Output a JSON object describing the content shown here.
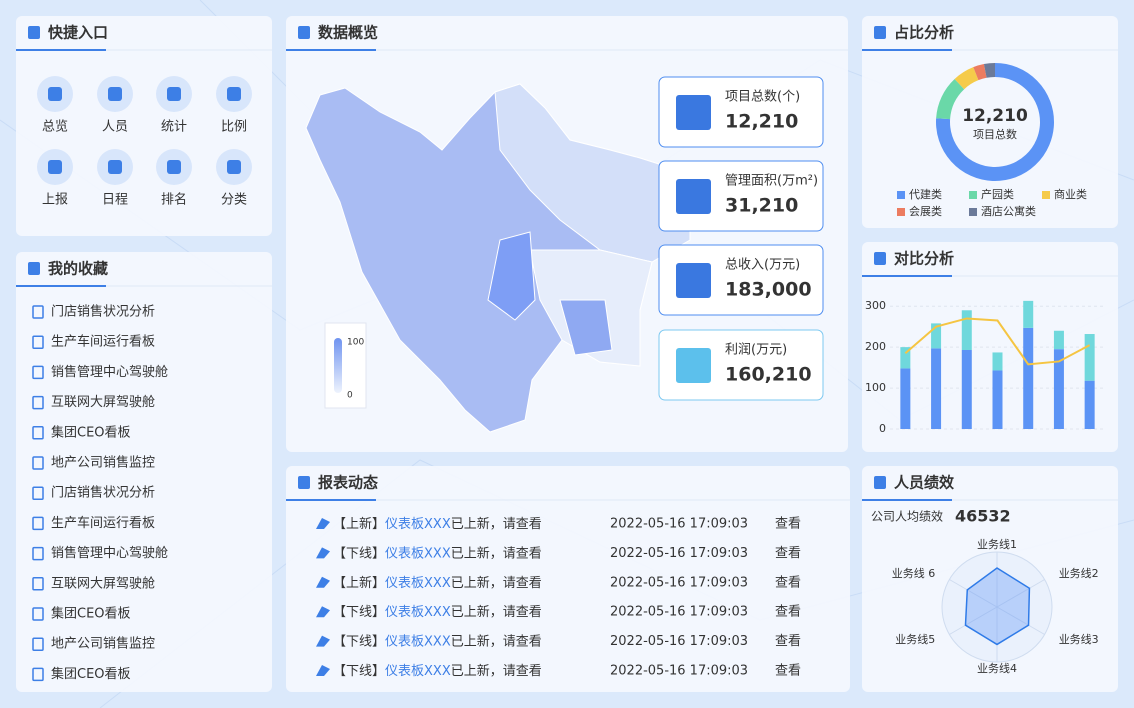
{
  "quick": {
    "title": "快捷入口",
    "items": [
      "总览",
      "人员",
      "统计",
      "比例",
      "上报",
      "日程",
      "排名",
      "分类"
    ]
  },
  "favorites": {
    "title": "我的收藏",
    "items": [
      "门店销售状况分析",
      "生产车间运行看板",
      "销售管理中心驾驶舱",
      "互联网大屏驾驶舱",
      "集团CEO看板",
      "地产公司销售监控",
      "门店销售状况分析",
      "生产车间运行看板",
      "销售管理中心驾驶舱",
      "互联网大屏驾驶舱",
      "集团CEO看板",
      "地产公司销售监控",
      "集团CEO看板"
    ]
  },
  "overview": {
    "title": "数据概览",
    "visual_map": {
      "max": 100,
      "min": 0
    },
    "kpis": [
      {
        "label": "项目总数(个)",
        "value": "12,210"
      },
      {
        "label": "管理面积(万m²)",
        "value": "31,210"
      },
      {
        "label": "总收入(万元)",
        "value": "183,000"
      },
      {
        "label": "利润(万元)",
        "value": "160,210"
      }
    ]
  },
  "reports": {
    "title": "报表动态",
    "rows": [
      {
        "tag": "【上新】",
        "name": "仪表板XXX",
        "text": "已上新，请查看",
        "time": "2022-05-16 17:09:03",
        "action": "查看"
      },
      {
        "tag": "【下线】",
        "name": "仪表板XXX",
        "text": "已上新，请查看",
        "time": "2022-05-16 17:09:03",
        "action": "查看"
      },
      {
        "tag": "【上新】",
        "name": "仪表板XXX",
        "text": "已上新，请查看",
        "time": "2022-05-16 17:09:03",
        "action": "查看"
      },
      {
        "tag": "【下线】",
        "name": "仪表板XXX",
        "text": "已上新，请查看",
        "time": "2022-05-16 17:09:03",
        "action": "查看"
      },
      {
        "tag": "【下线】",
        "name": "仪表板XXX",
        "text": "已上新，请查看",
        "time": "2022-05-16 17:09:03",
        "action": "查看"
      },
      {
        "tag": "【下线】",
        "name": "仪表板XXX",
        "text": "已上新，请查看",
        "time": "2022-05-16 17:09:03",
        "action": "查看"
      }
    ]
  },
  "share": {
    "title": "占比分析",
    "center_value": "12,210",
    "center_label": "项目总数",
    "chart": {
      "type": "pie",
      "categories": [
        "代建类",
        "产园类",
        "商业类",
        "会展类",
        "酒店公寓类"
      ],
      "values": [
        76,
        12,
        6,
        3,
        3
      ],
      "colors": [
        "#5b93f5",
        "#6ad8a8",
        "#f5cb4a",
        "#ec7c60",
        "#6b7a99"
      ]
    }
  },
  "compare": {
    "title": "对比分析",
    "chart": {
      "type": "bar",
      "stacked": true,
      "categories": [
        null,
        null,
        null,
        null,
        null,
        null,
        null
      ],
      "series": [
        {
          "color": "#5b93f5",
          "values": [
            148,
            197,
            193,
            143,
            247,
            195,
            118
          ]
        },
        {
          "color": "#6fd8dc",
          "values": [
            52,
            61,
            97,
            44,
            66,
            45,
            114
          ]
        },
        {
          "type": "line",
          "color": "#f5c542",
          "values": [
            185,
            250,
            270,
            265,
            158,
            165,
            205
          ]
        }
      ],
      "ylim": [
        0,
        320
      ],
      "yticks": [
        0,
        100,
        200,
        300
      ],
      "grid": true
    }
  },
  "performance": {
    "title": "人员绩效",
    "label": "公司人均绩效",
    "value": "46532",
    "chart": {
      "type": "radar",
      "indicators": [
        "业务线1",
        "业务线2",
        "业务线3",
        "业务线4",
        "业务线5",
        "业务线 6"
      ],
      "values": [
        75,
        72,
        70,
        72,
        70,
        66
      ],
      "rlim": [
        0,
        100
      ],
      "color": "#2f7be8"
    }
  }
}
